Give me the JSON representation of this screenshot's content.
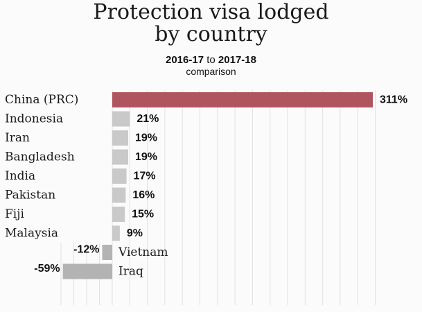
{
  "header": {
    "title_line1": "Protection visa lodged",
    "title_line2": "by country",
    "subtitle_from": "2016-17",
    "subtitle_to_word": "to",
    "subtitle_to": "2017-18",
    "subtitle_line2": "comparison"
  },
  "colors": {
    "highlight": "#b05560",
    "bar": "#c9c9c9",
    "bar_dark": "#b3b3b3",
    "grid": "#e2e2e2"
  },
  "chart_data": {
    "type": "bar",
    "orientation": "horizontal",
    "title": "Protection visa lodged by country",
    "subtitle": "2016-17 to 2017-18 comparison",
    "unit": "%",
    "categories": [
      "China (PRC)",
      "Indonesia",
      "Iran",
      "Bangladesh",
      "India",
      "Pakistan",
      "Fiji",
      "Malaysia",
      "Vietnam",
      "Iraq"
    ],
    "values": [
      311,
      21,
      19,
      19,
      17,
      16,
      15,
      9,
      -12,
      -59
    ],
    "value_labels": [
      "311%",
      "21%",
      "19%",
      "19%",
      "17%",
      "16%",
      "15%",
      "9%",
      "-12%",
      "-59%"
    ],
    "xlim": [
      -59,
      311
    ],
    "grid": true,
    "legend": "none"
  }
}
